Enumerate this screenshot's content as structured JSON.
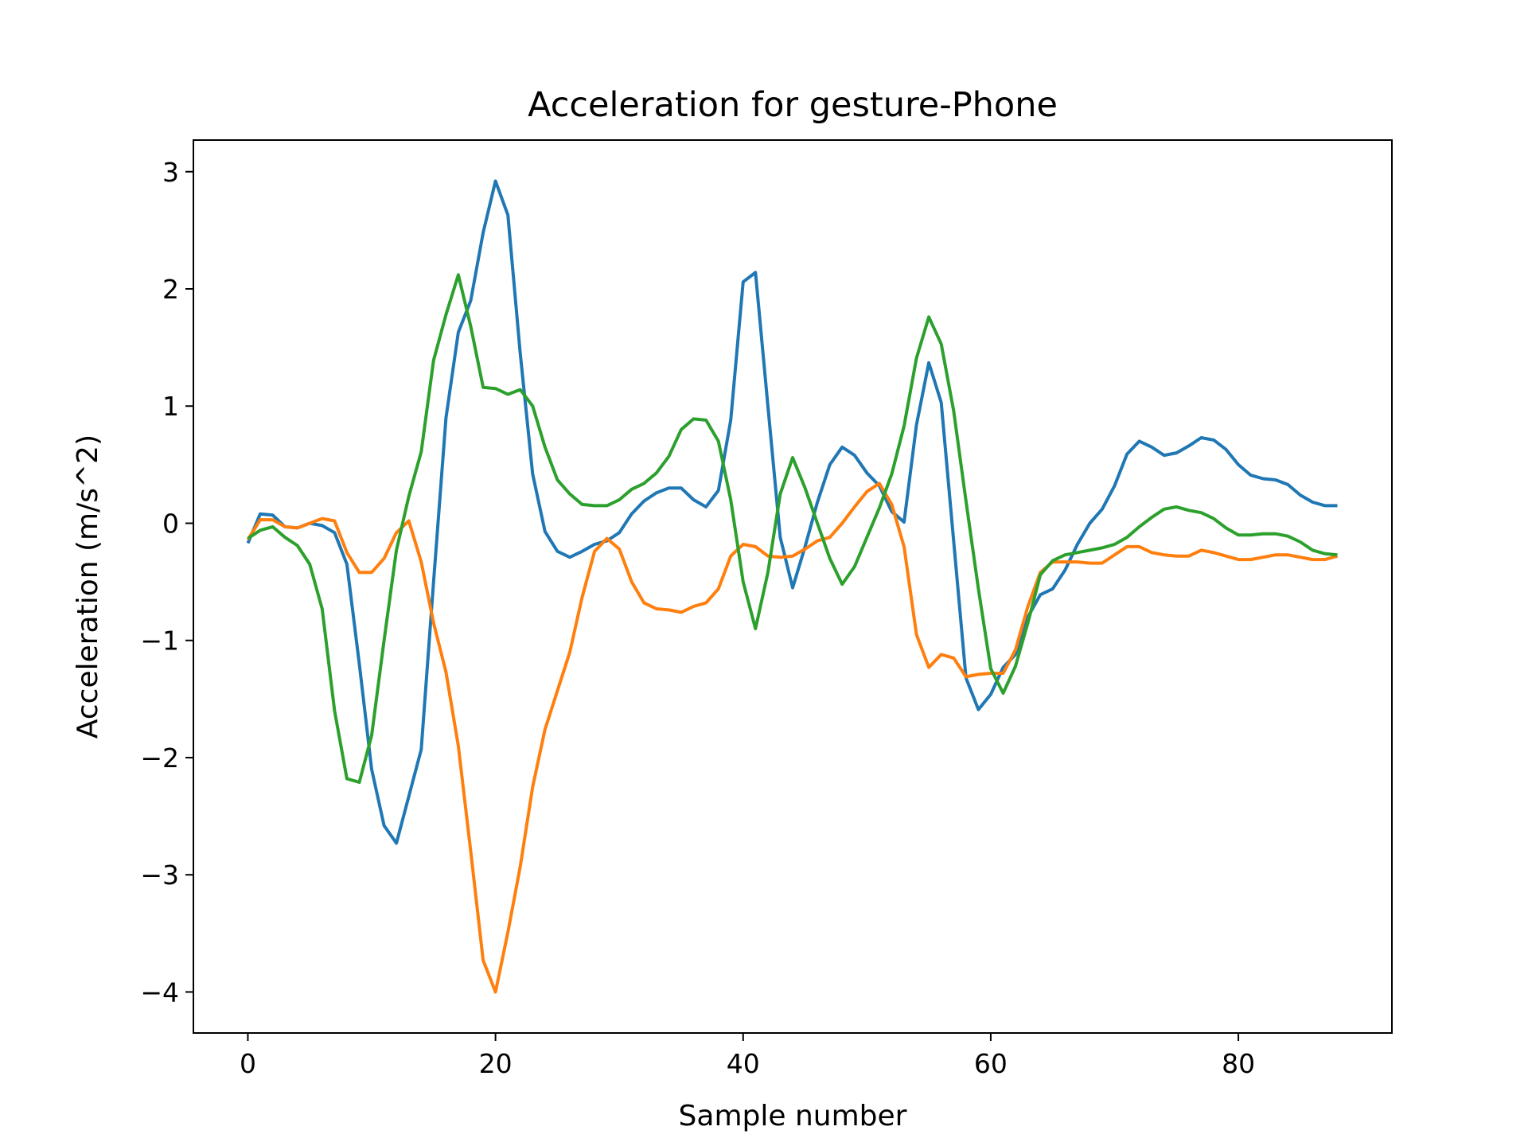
{
  "chart_data": {
    "type": "line",
    "title": "Acceleration for gesture-Phone",
    "xlabel": "Sample number",
    "ylabel": "Acceleration (m/s^2)",
    "xlim": [
      -4.4,
      92.4
    ],
    "ylim": [
      -4.35,
      3.27
    ],
    "xticks": [
      0,
      20,
      40,
      60,
      80
    ],
    "yticks": [
      -4,
      -3,
      -2,
      -1,
      0,
      1,
      2,
      3
    ],
    "grid": false,
    "legend": "none",
    "x": [
      0,
      1,
      2,
      3,
      4,
      5,
      6,
      7,
      8,
      9,
      10,
      11,
      12,
      13,
      14,
      15,
      16,
      17,
      18,
      19,
      20,
      21,
      22,
      23,
      24,
      25,
      26,
      27,
      28,
      29,
      30,
      31,
      32,
      33,
      34,
      35,
      36,
      37,
      38,
      39,
      40,
      41,
      42,
      43,
      44,
      45,
      46,
      47,
      48,
      49,
      50,
      51,
      52,
      53,
      54,
      55,
      56,
      57,
      58,
      59,
      60,
      61,
      62,
      63,
      64,
      65,
      66,
      67,
      68,
      69,
      70,
      71,
      72,
      73,
      74,
      75,
      76,
      77,
      78,
      79,
      80,
      81,
      82,
      83,
      84,
      85,
      86,
      87,
      88
    ],
    "series": [
      {
        "color": "#1f77b4",
        "values": [
          -0.17,
          0.08,
          0.07,
          -0.03,
          -0.04,
          0.0,
          -0.02,
          -0.08,
          -0.35,
          -1.2,
          -2.1,
          -2.58,
          -2.73,
          -2.33,
          -1.93,
          -0.5,
          0.9,
          1.63,
          1.9,
          2.48,
          2.92,
          2.63,
          1.45,
          0.42,
          -0.07,
          -0.24,
          -0.29,
          -0.24,
          -0.18,
          -0.15,
          -0.08,
          0.08,
          0.19,
          0.26,
          0.3,
          0.3,
          0.2,
          0.14,
          0.28,
          0.88,
          2.06,
          2.14,
          1.0,
          -0.12,
          -0.55,
          -0.2,
          0.18,
          0.5,
          0.65,
          0.58,
          0.43,
          0.32,
          0.1,
          0.01,
          0.84,
          1.37,
          1.03,
          -0.15,
          -1.32,
          -1.59,
          -1.46,
          -1.23,
          -1.12,
          -0.8,
          -0.61,
          -0.56,
          -0.4,
          -0.18,
          0.0,
          0.12,
          0.32,
          0.59,
          0.7,
          0.65,
          0.58,
          0.6,
          0.66,
          0.73,
          0.71,
          0.63,
          0.5,
          0.41,
          0.38,
          0.37,
          0.33,
          0.24,
          0.18,
          0.15,
          0.15
        ]
      },
      {
        "color": "#ff7f0e",
        "values": [
          -0.14,
          0.03,
          0.03,
          -0.03,
          -0.04,
          0.0,
          0.04,
          0.02,
          -0.25,
          -0.42,
          -0.42,
          -0.3,
          -0.08,
          0.02,
          -0.33,
          -0.85,
          -1.27,
          -1.9,
          -2.8,
          -3.73,
          -4.0,
          -3.49,
          -2.93,
          -2.25,
          -1.76,
          -1.43,
          -1.1,
          -0.63,
          -0.24,
          -0.13,
          -0.22,
          -0.5,
          -0.68,
          -0.73,
          -0.74,
          -0.76,
          -0.71,
          -0.68,
          -0.56,
          -0.28,
          -0.18,
          -0.2,
          -0.28,
          -0.29,
          -0.28,
          -0.22,
          -0.15,
          -0.12,
          0.0,
          0.14,
          0.27,
          0.34,
          0.16,
          -0.2,
          -0.95,
          -1.23,
          -1.12,
          -1.15,
          -1.31,
          -1.29,
          -1.28,
          -1.28,
          -1.08,
          -0.71,
          -0.42,
          -0.33,
          -0.33,
          -0.33,
          -0.34,
          -0.34,
          -0.27,
          -0.2,
          -0.2,
          -0.25,
          -0.27,
          -0.28,
          -0.28,
          -0.23,
          -0.25,
          -0.28,
          -0.31,
          -0.31,
          -0.29,
          -0.27,
          -0.27,
          -0.29,
          -0.31,
          -0.31,
          -0.28
        ]
      },
      {
        "color": "#2ca02c",
        "values": [
          -0.13,
          -0.06,
          -0.03,
          -0.12,
          -0.19,
          -0.35,
          -0.73,
          -1.6,
          -2.18,
          -2.21,
          -1.81,
          -1.0,
          -0.23,
          0.23,
          0.61,
          1.39,
          1.78,
          2.12,
          1.68,
          1.16,
          1.15,
          1.1,
          1.14,
          1.0,
          0.65,
          0.37,
          0.25,
          0.16,
          0.15,
          0.15,
          0.2,
          0.29,
          0.34,
          0.43,
          0.57,
          0.8,
          0.89,
          0.88,
          0.7,
          0.2,
          -0.5,
          -0.9,
          -0.42,
          0.25,
          0.56,
          0.3,
          0.0,
          -0.3,
          -0.52,
          -0.37,
          -0.12,
          0.13,
          0.42,
          0.83,
          1.41,
          1.76,
          1.53,
          0.96,
          0.19,
          -0.56,
          -1.24,
          -1.45,
          -1.22,
          -0.85,
          -0.44,
          -0.32,
          -0.27,
          -0.25,
          -0.23,
          -0.21,
          -0.18,
          -0.12,
          -0.03,
          0.05,
          0.12,
          0.14,
          0.11,
          0.09,
          0.04,
          -0.04,
          -0.1,
          -0.1,
          -0.09,
          -0.09,
          -0.11,
          -0.16,
          -0.23,
          -0.26,
          -0.27
        ]
      }
    ]
  }
}
